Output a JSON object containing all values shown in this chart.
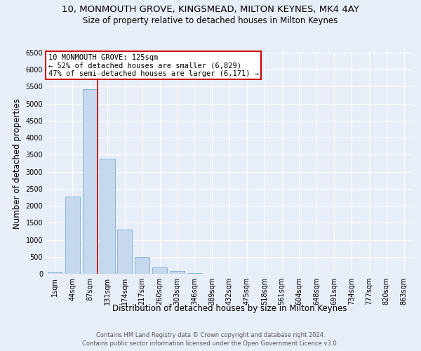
{
  "title1": "10, MONMOUTH GROVE, KINGSMEAD, MILTON KEYNES, MK4 4AY",
  "title2": "Size of property relative to detached houses in Milton Keynes",
  "xlabel": "Distribution of detached houses by size in Milton Keynes",
  "ylabel": "Number of detached properties",
  "footnote1": "Contains HM Land Registry data © Crown copyright and database right 2024.",
  "footnote2": "Contains public sector information licensed under the Open Government Licence v3.0.",
  "bar_labels": [
    "1sqm",
    "44sqm",
    "87sqm",
    "131sqm",
    "174sqm",
    "217sqm",
    "260sqm",
    "303sqm",
    "346sqm",
    "389sqm",
    "432sqm",
    "475sqm",
    "518sqm",
    "561sqm",
    "604sqm",
    "648sqm",
    "691sqm",
    "734sqm",
    "777sqm",
    "820sqm",
    "863sqm"
  ],
  "bar_values": [
    50,
    2270,
    5430,
    3380,
    1300,
    490,
    185,
    80,
    20,
    0,
    0,
    0,
    0,
    0,
    0,
    0,
    0,
    0,
    0,
    0,
    0
  ],
  "bar_color": "#c5d8ee",
  "bar_edge_color": "#7aaed4",
  "property_label": "10 MONMOUTH GROVE: 125sqm",
  "annotation_line1": "← 52% of detached houses are smaller (6,829)",
  "annotation_line2": "47% of semi-detached houses are larger (6,171) →",
  "ylim": [
    0,
    6500
  ],
  "yticks": [
    0,
    500,
    1000,
    1500,
    2000,
    2500,
    3000,
    3500,
    4000,
    4500,
    5000,
    5500,
    6000,
    6500
  ],
  "background_color": "#e8eef8",
  "grid_color": "#ffffff",
  "annotation_box_color": "#ffffff",
  "annotation_box_edge": "#cc0000",
  "red_line_color": "#cc0000",
  "title_fontsize": 9.5,
  "subtitle_fontsize": 8.5,
  "axis_label_fontsize": 8.5,
  "tick_fontsize": 7,
  "annotation_fontsize": 7.5,
  "footnote_fontsize": 6,
  "footnote_color": "#555555"
}
